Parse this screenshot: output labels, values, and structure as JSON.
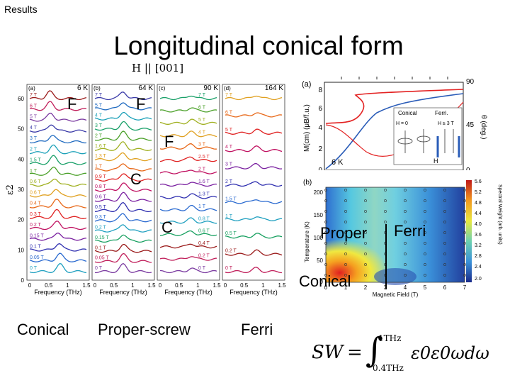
{
  "header": {
    "section": "Results",
    "title": "Longitudinal conical form",
    "field_label": "H || [001]"
  },
  "spectra_figure": {
    "panels": [
      {
        "letter": "(a)",
        "temperature": "6 K",
        "fields": [
          "7 T",
          "6 T",
          "5 T",
          "4 T",
          "3 T",
          "2 T",
          "1.5 T",
          "1 T",
          "0.6 T",
          "0.6 T",
          "0.4 T",
          "0.3 T",
          "0.2 T",
          "0.15 T",
          "0.1 T",
          "0.05 T",
          "0 T"
        ]
      },
      {
        "letter": "(b)",
        "temperature": "64 K",
        "fields": [
          "7 T",
          "5 T",
          "4 T",
          "3 T",
          "2 T",
          "1.6 T",
          "1.3 T",
          "1 T",
          "0.9 T",
          "0.8 T",
          "0.6 T",
          "0.5 T",
          "0.3 T",
          "0.2 T",
          "0.15 T",
          "0.1 T",
          "0.05 T",
          "0 T"
        ]
      },
      {
        "letter": "(c)",
        "temperature": "90 K",
        "fields": [
          "7 T",
          "6 T",
          "5 T",
          "4 T",
          "3 T",
          "2.5 T",
          "2 T",
          "1.6 T",
          "1.3 T",
          "1 T",
          "0.8 T",
          "0.6 T",
          "0.4 T",
          "0.2 T",
          "0 T"
        ]
      },
      {
        "letter": "(d)",
        "temperature": "164 K",
        "fields": [
          "7 T",
          "6 T",
          "5 T",
          "4 T",
          "3 T",
          "2 T",
          "1.5 T",
          "1 T",
          "0.5 T",
          "0.2 T",
          "0 T"
        ]
      }
    ],
    "y_axis_label": "ε2",
    "y_ticks": [
      "0",
      "10",
      "20",
      "30",
      "40",
      "50",
      "60"
    ],
    "x_axis_label": "Frequency (THz)",
    "x_ticks": [
      "0",
      "0.5",
      "1",
      "1.5"
    ]
  },
  "magnetization_figure": {
    "letter": "(a)",
    "y_axis_label": "M(cm) (μB/f.u.)",
    "right_axis_label": "θ (deg.)",
    "y_ticks": [
      "0",
      "2",
      "4",
      "6",
      "8"
    ],
    "right_ticks": [
      "0",
      "45",
      "90"
    ],
    "curve_label": "6 K",
    "inset_labels": [
      "Conical",
      "Ferri.",
      "H = 0",
      "H ≥ 3 T",
      "H"
    ]
  },
  "phase_figure": {
    "letter": "(b)",
    "y_axis_label": "Temperature (K)",
    "x_axis_label": "Magnetic Field (T)",
    "x_ticks": [
      "0",
      "1",
      "2",
      "3",
      "4",
      "5",
      "6",
      "7"
    ],
    "y_ticks": [
      "0",
      "50",
      "100",
      "150",
      "200"
    ],
    "colorbar_label": "Spectral Weight (arb. units)",
    "colorbar_ticks": [
      "5.6",
      "5.2",
      "4.8",
      "4.4",
      "4.0",
      "3.6",
      "3.2",
      "2.8",
      "2.4",
      "2.0"
    ]
  },
  "annotations": {
    "f1": "F",
    "f2": "F",
    "f3": "F",
    "c1": "C",
    "c2": "C",
    "proper": "Proper",
    "ferri": "Ferri",
    "conical": "Conical"
  },
  "captions": {
    "conical": "Conical",
    "proper_screw": "Proper-screw",
    "ferri": "Ferri"
  },
  "equation": {
    "lhs": "SW",
    "eq": "=",
    "upper": "1THz",
    "lower": "0.4THz",
    "integrand": "ε0ε0ωdω"
  },
  "colors": {
    "curve_red": "#e32222",
    "curve_blue": "#2a5cb8",
    "accent": "#000000"
  }
}
